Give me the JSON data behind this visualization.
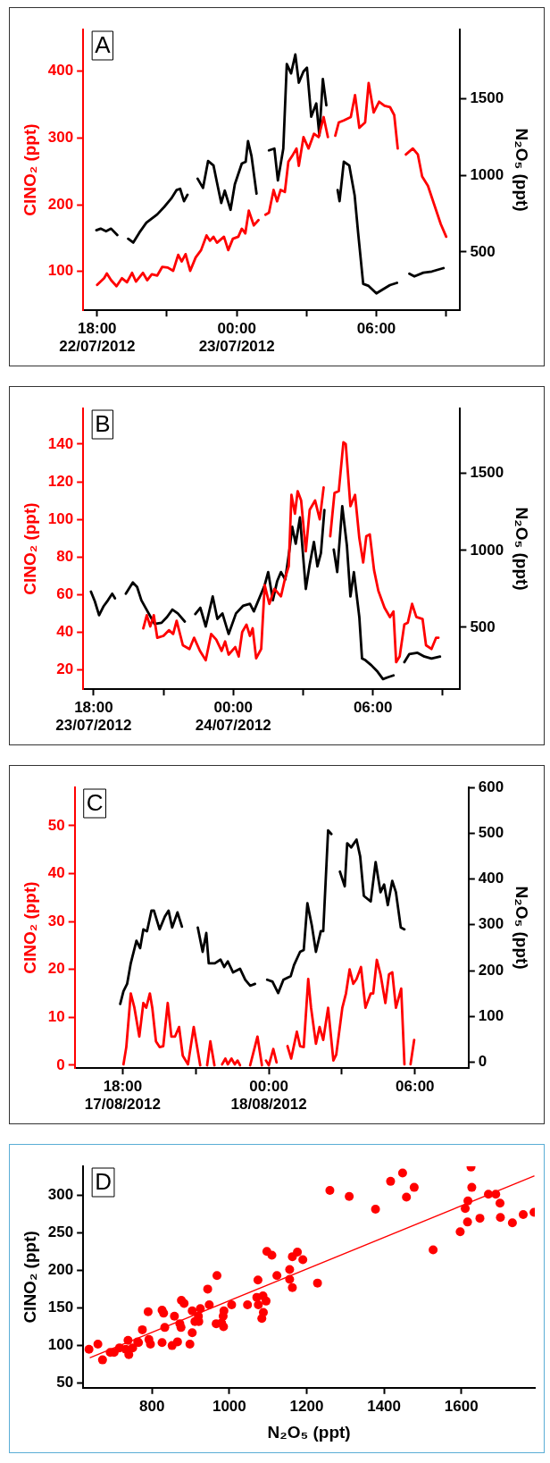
{
  "chart_data": [
    {
      "type": "line",
      "annotations": [
        "A"
      ],
      "ylabel": "ClNO₂ (ppt)",
      "y2label": "N₂O₅ (ppt)",
      "xlim": [
        "2012-07-22T17:24",
        "2012-07-23T09:36"
      ],
      "xticks": [
        {
          "value": "2012-07-22T18:00",
          "label": "18:00\n22/07/2012"
        },
        {
          "value": "2012-07-22T21:00",
          "label": null
        },
        {
          "value": "2012-07-23T00:00",
          "label": "00:00\n23/07/2012"
        },
        {
          "value": "2012-07-23T03:00",
          "label": null
        },
        {
          "value": "2012-07-23T06:00",
          "label": "06:00"
        },
        {
          "value": "2012-07-23T09:00",
          "label": null
        }
      ],
      "ylim": [
        42,
        462
      ],
      "yticks": [
        100,
        200,
        300,
        400
      ],
      "y2lim": [
        120,
        1950
      ],
      "y2ticks": [
        500,
        1000,
        1500
      ],
      "series": [
        {
          "color": "#ff0000",
          "x": [
            "2012-07-22T18:00",
            "2012-07-22T18:18",
            "2012-07-22T18:25",
            "2012-07-22T18:36",
            "2012-07-22T18:50",
            "2012-07-22T19:04",
            "2012-07-22T19:17",
            "2012-07-22T19:30",
            "2012-07-22T19:40",
            "2012-07-22T19:58",
            "2012-07-22T20:09",
            "2012-07-22T20:21",
            "2012-07-22T20:35",
            "2012-07-22T20:48",
            "2012-07-22T21:02",
            "2012-07-22T21:16",
            "2012-07-22T21:29",
            "2012-07-22T21:38",
            "2012-07-22T21:48",
            "2012-07-22T22:00",
            "2012-07-22T22:14",
            "2012-07-22T22:28",
            "2012-07-22T22:42",
            "2012-07-22T22:51",
            "2012-07-22T23:00",
            "2012-07-22T23:09",
            "2012-07-22T23:27",
            "2012-07-22T23:38",
            "2012-07-22T23:50",
            "2012-07-23T00:04",
            "2012-07-23T00:13",
            "2012-07-23T00:22",
            "2012-07-23T00:31",
            "2012-07-23T00:44",
            "2012-07-23T00:56",
            "2012-07-23T01:06",
            "2012-07-23T01:14",
            "2012-07-23T01:23",
            "2012-07-23T01:35",
            "2012-07-23T01:44",
            "2012-07-23T01:53",
            "2012-07-23T02:04",
            "2012-07-23T02:13",
            "2012-07-23T02:25",
            "2012-07-23T02:34",
            "2012-07-23T02:40",
            "2012-07-23T02:52",
            "2012-07-23T03:05",
            "2012-07-23T03:19",
            "2012-07-23T03:31",
            "2012-07-23T03:44",
            "2012-07-23T03:55",
            "2012-07-23T04:06",
            "2012-07-23T04:14",
            "2012-07-23T04:23",
            "2012-07-23T04:36",
            "2012-07-23T04:54",
            "2012-07-23T05:05",
            "2012-07-23T05:16",
            "2012-07-23T05:31",
            "2012-07-23T05:40",
            "2012-07-23T05:53",
            "2012-07-23T06:07",
            "2012-07-23T06:21",
            "2012-07-23T06:35",
            "2012-07-23T06:46",
            "2012-07-23T06:55",
            "2012-07-23T07:06",
            "2012-07-23T07:16",
            "2012-07-23T07:34",
            "2012-07-23T07:47",
            "2012-07-23T07:58",
            "2012-07-23T08:13",
            "2012-07-23T08:28",
            "2012-07-23T08:46",
            "2012-07-23T09:00"
          ],
          "values": [
            80,
            90,
            97,
            87,
            78,
            90,
            84,
            98,
            85,
            98,
            87,
            96,
            94,
            107,
            106,
            101,
            125,
            115,
            126,
            101,
            121,
            132,
            154,
            146,
            152,
            143,
            152,
            132,
            149,
            152,
            164,
            157,
            191,
            169,
            177,
            null,
            185,
            188,
            222,
            205,
            222,
            219,
            264,
            275,
            284,
            258,
            301,
            284,
            306,
            301,
            331,
            301,
            null,
            303,
            323,
            326,
            331,
            364,
            315,
            323,
            382,
            338,
            354,
            348,
            346,
            334,
            284,
            null,
            275,
            284,
            275,
            242,
            228,
            202,
            171,
            152
          ]
        },
        {
          "color": "#000000",
          "axis": "y2",
          "x": [
            "2012-07-22T17:58",
            "2012-07-22T18:09",
            "2012-07-22T18:23",
            "2012-07-22T18:36",
            "2012-07-22T18:52",
            "2012-07-22T19:06",
            "2012-07-22T19:20",
            "2012-07-22T19:33",
            "2012-07-22T19:49",
            "2012-07-22T20:07",
            "2012-07-22T20:35",
            "2012-07-22T20:53",
            "2012-07-22T21:11",
            "2012-07-22T21:25",
            "2012-07-22T21:34",
            "2012-07-22T21:44",
            "2012-07-22T21:53",
            "2012-07-22T22:06",
            "2012-07-22T22:19",
            "2012-07-22T22:33",
            "2012-07-22T22:46",
            "2012-07-22T23:00",
            "2012-07-22T23:09",
            "2012-07-22T23:20",
            "2012-07-22T23:29",
            "2012-07-22T23:44",
            "2012-07-22T23:55",
            "2012-07-23T00:13",
            "2012-07-23T00:23",
            "2012-07-23T00:29",
            "2012-07-23T00:38",
            "2012-07-23T00:51",
            "2012-07-23T01:06",
            "2012-07-23T01:23",
            "2012-07-23T01:37",
            "2012-07-23T01:46",
            "2012-07-23T02:00",
            "2012-07-23T02:09",
            "2012-07-23T02:20",
            "2012-07-23T02:31",
            "2012-07-23T02:40",
            "2012-07-23T02:52",
            "2012-07-23T03:01",
            "2012-07-23T03:12",
            "2012-07-23T03:25",
            "2012-07-23T03:33",
            "2012-07-23T03:42",
            "2012-07-23T03:51",
            "2012-07-23T04:06",
            "2012-07-23T04:20",
            "2012-07-23T04:25",
            "2012-07-23T04:36",
            "2012-07-23T04:50",
            "2012-07-23T05:04",
            "2012-07-23T05:13",
            "2012-07-23T05:26",
            "2012-07-23T05:40",
            "2012-07-23T06:00",
            "2012-07-23T06:16",
            "2012-07-23T06:35",
            "2012-07-23T06:53",
            "2012-07-23T07:09",
            "2012-07-23T07:25",
            "2012-07-23T07:38",
            "2012-07-23T08:01",
            "2012-07-23T08:23",
            "2012-07-23T08:53"
          ],
          "values": [
            642,
            652,
            635,
            652,
            610,
            null,
            586,
            561,
            627,
            691,
            745,
            794,
            848,
            904,
            912,
            831,
            873,
            null,
            978,
            917,
            1093,
            1064,
            953,
            819,
            900,
            775,
            941,
            1076,
            1088,
            1223,
            1125,
            880,
            null,
            1162,
            1174,
            966,
            1174,
            1725,
            1664,
            1787,
            1603,
            1676,
            1701,
            1382,
            1468,
            1260,
            1627,
            1456,
            null,
            904,
            831,
            1088,
            1064,
            868,
            623,
            292,
            279,
            230,
            255,
            284,
            299,
            null,
            358,
            341,
            365,
            373,
            395
          ]
        }
      ]
    },
    {
      "type": "line",
      "annotations": [
        "B"
      ],
      "ylabel": "ClNO₂ (ppt)",
      "y2label": "N₂O₅ (ppt)",
      "xlim": [
        "2012-07-23T17:33",
        "2012-07-24T09:45"
      ],
      "xticks": [
        {
          "value": "2012-07-23T18:00",
          "label": "18:00\n23/07/2012"
        },
        {
          "value": "2012-07-23T21:00",
          "label": null
        },
        {
          "value": "2012-07-24T00:00",
          "label": "00:00\n24/07/2012"
        },
        {
          "value": "2012-07-24T03:00",
          "label": null
        },
        {
          "value": "2012-07-24T06:00",
          "label": "06:00"
        },
        {
          "value": "2012-07-24T09:00",
          "label": null
        }
      ],
      "ylim": [
        9.6,
        159
      ],
      "yticks": [
        20,
        40,
        60,
        80,
        100,
        120,
        140
      ],
      "y2lim": [
        97,
        1923
      ],
      "y2ticks": [
        500,
        1000,
        1500
      ],
      "series": [
        {
          "color": "#ff0000",
          "x": [
            "2012-07-23T20:08",
            "2012-07-23T20:17",
            "2012-07-23T20:26",
            "2012-07-23T20:35",
            "2012-07-23T20:44",
            "2012-07-23T21:00",
            "2012-07-23T21:14",
            "2012-07-23T21:25",
            "2012-07-23T21:34",
            "2012-07-23T21:50",
            "2012-07-23T22:07",
            "2012-07-23T22:19",
            "2012-07-23T22:34",
            "2012-07-23T22:49",
            "2012-07-23T23:03",
            "2012-07-23T23:16",
            "2012-07-23T23:30",
            "2012-07-23T23:39",
            "2012-07-23T23:48",
            "2012-07-24T00:05",
            "2012-07-24T00:14",
            "2012-07-24T00:23",
            "2012-07-24T00:34",
            "2012-07-24T00:43",
            "2012-07-24T00:50",
            "2012-07-24T00:59",
            "2012-07-24T01:12",
            "2012-07-24T01:21",
            "2012-07-24T01:33",
            "2012-07-24T01:46",
            "2012-07-24T02:03",
            "2012-07-24T02:14",
            "2012-07-24T02:23",
            "2012-07-24T02:30",
            "2012-07-24T02:39",
            "2012-07-24T02:46",
            "2012-07-24T02:55",
            "2012-07-24T03:07",
            "2012-07-24T03:17",
            "2012-07-24T03:31",
            "2012-07-24T03:43",
            "2012-07-24T03:53",
            "2012-07-24T04:02",
            "2012-07-24T04:10",
            "2012-07-24T04:21",
            "2012-07-24T04:32",
            "2012-07-24T04:44",
            "2012-07-24T04:50",
            "2012-07-24T05:02",
            "2012-07-24T05:14",
            "2012-07-24T05:25",
            "2012-07-24T05:35",
            "2012-07-24T05:43",
            "2012-07-24T05:52",
            "2012-07-24T06:03",
            "2012-07-24T06:14",
            "2012-07-24T06:30",
            "2012-07-24T06:44",
            "2012-07-24T06:53",
            "2012-07-24T07:00",
            "2012-07-24T07:09",
            "2012-07-24T07:21",
            "2012-07-24T07:30",
            "2012-07-24T07:41",
            "2012-07-24T07:52",
            "2012-07-24T08:08",
            "2012-07-24T08:17",
            "2012-07-24T08:31",
            "2012-07-24T08:43",
            "2012-07-24T08:49"
          ],
          "values": [
            42,
            49,
            43,
            49,
            37,
            38,
            41,
            39,
            46,
            33,
            31,
            37,
            30,
            25,
            39,
            36,
            30,
            35,
            28,
            32,
            27,
            40,
            44,
            38,
            42,
            26,
            31,
            65,
            55,
            63,
            59,
            69,
            75,
            113,
            103,
            115,
            110,
            83,
            105,
            110,
            100,
            117,
            null,
            91,
            114,
            115,
            141,
            140,
            107,
            113,
            90,
            77,
            91,
            92,
            73,
            62,
            53,
            48,
            51,
            24,
            27,
            44,
            45,
            55,
            48,
            47,
            33,
            31,
            37,
            37
          ]
        },
        {
          "color": "#000000",
          "axis": "y2",
          "x": [
            "2012-07-23T17:53",
            "2012-07-23T18:03",
            "2012-07-23T18:14",
            "2012-07-23T18:25",
            "2012-07-23T18:37",
            "2012-07-23T18:48",
            "2012-07-23T18:55",
            "2012-07-23T19:09",
            "2012-07-23T19:23",
            "2012-07-23T19:41",
            "2012-07-23T19:52",
            "2012-07-23T20:03",
            "2012-07-23T20:19",
            "2012-07-23T20:37",
            "2012-07-23T20:55",
            "2012-07-23T21:09",
            "2012-07-23T21:23",
            "2012-07-23T21:37",
            "2012-07-23T21:55",
            "2012-07-23T22:09",
            "2012-07-23T22:22",
            "2012-07-23T22:35",
            "2012-07-23T22:49",
            "2012-07-23T23:07",
            "2012-07-23T23:19",
            "2012-07-23T23:32",
            "2012-07-23T23:48",
            "2012-07-24T00:07",
            "2012-07-24T00:25",
            "2012-07-24T00:43",
            "2012-07-24T00:53",
            "2012-07-24T01:21",
            "2012-07-24T01:30",
            "2012-07-24T01:42",
            "2012-07-24T01:53",
            "2012-07-24T02:03",
            "2012-07-24T02:14",
            "2012-07-24T02:25",
            "2012-07-24T02:32",
            "2012-07-24T02:41",
            "2012-07-24T02:52",
            "2012-07-24T03:07",
            "2012-07-24T03:17",
            "2012-07-24T03:28",
            "2012-07-24T03:37",
            "2012-07-24T03:46",
            "2012-07-24T03:55",
            "2012-07-24T04:06",
            "2012-07-24T04:19",
            "2012-07-24T04:28",
            "2012-07-24T04:41",
            "2012-07-24T04:53",
            "2012-07-24T05:02",
            "2012-07-24T05:11",
            "2012-07-24T05:25",
            "2012-07-24T05:32",
            "2012-07-24T05:41",
            "2012-07-24T05:56",
            "2012-07-24T06:12",
            "2012-07-24T06:26",
            "2012-07-24T06:39",
            "2012-07-24T06:53",
            "2012-07-24T07:06",
            "2012-07-24T07:21",
            "2012-07-24T07:34",
            "2012-07-24T07:55",
            "2012-07-24T08:13",
            "2012-07-24T08:31",
            "2012-07-24T08:53"
          ],
          "values": [
            732,
            669,
            578,
            634,
            676,
            718,
            688,
            null,
            718,
            791,
            762,
            676,
            603,
            522,
            529,
            566,
            615,
            590,
            537,
            null,
            586,
            627,
            505,
            700,
            554,
            590,
            456,
            590,
            639,
            652,
            603,
            774,
            859,
            676,
            798,
            859,
            810,
            1006,
            1153,
            1043,
            1214,
            749,
            908,
            1055,
            896,
            982,
            1263,
            null,
            1006,
            859,
            1287,
            1031,
            700,
            859,
            566,
            297,
            285,
            253,
            211,
            163,
            175,
            187,
            null,
            273,
            326,
            334,
            309,
            297,
            309
          ]
        }
      ]
    },
    {
      "type": "line",
      "annotations": [
        "C"
      ],
      "ylabel": "ClNO₂ (ppt)",
      "y2label": "N₂O₅ (ppt)",
      "xlim": [
        "2012-08-17T16:02",
        "2012-08-18T08:12"
      ],
      "xticks": [
        {
          "value": "2012-08-17T18:00",
          "label": "18:00\n17/08/2012"
        },
        {
          "value": "2012-08-17T21:00",
          "label": null
        },
        {
          "value": "2012-08-18T00:00",
          "label": "00:00\n18/08/2012"
        },
        {
          "value": "2012-08-18T03:00",
          "label": null
        },
        {
          "value": "2012-08-18T06:00",
          "label": "06:00"
        }
      ],
      "ylim": [
        -0.6,
        58
      ],
      "yticks": [
        0,
        10,
        20,
        30,
        40,
        50
      ],
      "y2lim": [
        -13,
        600
      ],
      "y2ticks": [
        0,
        100,
        200,
        300,
        400,
        500,
        600
      ],
      "series": [
        {
          "color": "#ff0000",
          "x": [
            "2012-08-17T18:02",
            "2012-08-17T18:09",
            "2012-08-17T18:20",
            "2012-08-17T18:29",
            "2012-08-17T18:41",
            "2012-08-17T18:51",
            "2012-08-17T18:58",
            "2012-08-17T19:07",
            "2012-08-17T19:13",
            "2012-08-17T19:22",
            "2012-08-17T19:31",
            "2012-08-17T19:40",
            "2012-08-17T19:51",
            "2012-08-17T20:00",
            "2012-08-17T20:09",
            "2012-08-17T20:19",
            "2012-08-17T20:28",
            "2012-08-17T20:41",
            "2012-08-17T20:55",
            "2012-08-17T21:11",
            "2012-08-17T21:18",
            "2012-08-17T21:28",
            "2012-08-17T21:36",
            "2012-08-17T21:46",
            "2012-08-17T21:54",
            "2012-08-17T22:05",
            "2012-08-17T22:13",
            "2012-08-17T22:19",
            "2012-08-17T22:28",
            "2012-08-17T22:36",
            "2012-08-17T22:43",
            "2012-08-17T22:49",
            "2012-08-17T23:00",
            "2012-08-17T23:14",
            "2012-08-17T23:32",
            "2012-08-17T23:43",
            "2012-08-17T23:48",
            "2012-08-17T23:53",
            "2012-08-18T00:00",
            "2012-08-18T00:11",
            "2012-08-18T00:19",
            "2012-08-18T00:30",
            "2012-08-18T00:46",
            "2012-08-18T00:55",
            "2012-08-18T01:09",
            "2012-08-18T01:17",
            "2012-08-18T01:26",
            "2012-08-18T01:37",
            "2012-08-18T01:44",
            "2012-08-18T01:56",
            "2012-08-18T02:05",
            "2012-08-18T02:14",
            "2012-08-18T02:26",
            "2012-08-18T02:39",
            "2012-08-18T02:46",
            "2012-08-18T03:01",
            "2012-08-18T03:10",
            "2012-08-18T03:19",
            "2012-08-18T03:28",
            "2012-08-18T03:36",
            "2012-08-18T03:47",
            "2012-08-18T03:58",
            "2012-08-18T04:11",
            "2012-08-18T04:17",
            "2012-08-18T04:26",
            "2012-08-18T04:35",
            "2012-08-18T04:47",
            "2012-08-18T04:56",
            "2012-08-18T05:04",
            "2012-08-18T05:13",
            "2012-08-18T05:26",
            "2012-08-18T05:34",
            "2012-08-18T05:42",
            "2012-08-18T05:49",
            "2012-08-18T05:58"
          ],
          "values": [
            0.2,
            3.8,
            15,
            12,
            6,
            13,
            12,
            15,
            12,
            5,
            3.8,
            4,
            13,
            6,
            6,
            8,
            2,
            0.2,
            8,
            0,
            null,
            0,
            5,
            0,
            null,
            0.2,
            1.4,
            0.2,
            1.4,
            0.2,
            1,
            0,
            null,
            0,
            6,
            0,
            null,
            1,
            0,
            3.4,
            0.6,
            null,
            4,
            1.4,
            7,
            4,
            3.8,
            18,
            12,
            4.5,
            8,
            5.3,
            12,
            1,
            2.2,
            12,
            15,
            20,
            17,
            18,
            20.5,
            12,
            15,
            15,
            22,
            19,
            13,
            19,
            19.4,
            12,
            16,
            0.2,
            null,
            0.2,
            5.3
          ]
        },
        {
          "color": "#000000",
          "axis": "y2",
          "x": [
            "2012-08-17T17:54",
            "2012-08-17T18:02",
            "2012-08-17T18:11",
            "2012-08-17T18:20",
            "2012-08-17T18:34",
            "2012-08-17T18:43",
            "2012-08-17T18:51",
            "2012-08-17T19:00",
            "2012-08-17T19:11",
            "2012-08-17T19:17",
            "2012-08-17T19:31",
            "2012-08-17T19:44",
            "2012-08-17T19:53",
            "2012-08-17T20:02",
            "2012-08-17T20:15",
            "2012-08-17T20:26",
            "2012-08-17T20:48",
            "2012-08-17T21:05",
            "2012-08-17T21:17",
            "2012-08-17T21:26",
            "2012-08-17T21:32",
            "2012-08-17T21:47",
            "2012-08-17T22:01",
            "2012-08-17T22:10",
            "2012-08-17T22:19",
            "2012-08-17T22:32",
            "2012-08-17T22:49",
            "2012-08-17T23:02",
            "2012-08-17T23:14",
            "2012-08-17T23:26",
            "2012-08-17T23:42",
            "2012-08-17T23:56",
            "2012-08-18T00:09",
            "2012-08-18T00:23",
            "2012-08-18T00:36",
            "2012-08-18T00:54",
            "2012-08-18T01:02",
            "2012-08-18T01:17",
            "2012-08-18T01:26",
            "2012-08-18T01:35",
            "2012-08-18T01:46",
            "2012-08-18T01:56",
            "2012-08-18T02:08",
            "2012-08-18T02:14",
            "2012-08-18T02:26",
            "2012-08-18T02:34",
            "2012-08-18T02:45",
            "2012-08-18T02:55",
            "2012-08-18T03:07",
            "2012-08-18T03:13",
            "2012-08-18T03:23",
            "2012-08-18T03:36",
            "2012-08-18T03:45",
            "2012-08-18T03:54",
            "2012-08-18T04:11",
            "2012-08-18T04:23",
            "2012-08-18T04:35",
            "2012-08-18T04:44",
            "2012-08-18T04:53",
            "2012-08-18T05:04",
            "2012-08-18T05:13",
            "2012-08-18T05:25",
            "2012-08-18T05:34"
          ],
          "values": [
            127,
            155,
            171,
            216,
            265,
            249,
            290,
            286,
            331,
            331,
            290,
            318,
            331,
            294,
            327,
            296,
            null,
            294,
            241,
            282,
            216,
            216,
            224,
            208,
            220,
            196,
            204,
            180,
            167,
            171,
            null,
            180,
            176,
            151,
            180,
            188,
            212,
            241,
            245,
            347,
            298,
            241,
            286,
            286,
            506,
            498,
            null,
            416,
            384,
            478,
            469,
            486,
            449,
            363,
            351,
            437,
            371,
            388,
            343,
            396,
            371,
            294,
            290
          ]
        }
      ]
    },
    {
      "type": "scatter",
      "annotations": [
        "D"
      ],
      "xlabel": "N₂O₅ (ppt)",
      "ylabel": "ClNO₂ (ppt)",
      "xlim": [
        622,
        1790
      ],
      "xticks": [
        800,
        1000,
        1200,
        1400,
        1600
      ],
      "ylim": [
        44,
        338
      ],
      "yticks": [
        50,
        100,
        150,
        200,
        250,
        300
      ],
      "series": [
        {
          "color": "#ff0000",
          "marker": "circle",
          "x": [
            637,
            660,
            672,
            692,
            702,
            716,
            732,
            738,
            740,
            750,
            763,
            765,
            775,
            790,
            792,
            796,
            826,
            826,
            830,
            833,
            852,
            858,
            866,
            872,
            875,
            876,
            883,
            898,
            904,
            904,
            911,
            920,
            921,
            925,
            944,
            948,
            966,
            968,
            980,
            984,
            985,
            986,
            1006,
            1047,
            1071,
            1074,
            1075,
            1087,
            1088,
            1084,
            1095,
            1097,
            1110,
            1123,
            1156,
            1156,
            1163,
            1163,
            1176,
            1190,
            1228,
            1260,
            1310,
            1378,
            1417,
            1448,
            1458,
            1478,
            1527,
            1597,
            1610,
            1616,
            1617,
            1625,
            1627,
            1648,
            1670,
            1689,
            1700,
            1701,
            1732,
            1760,
            1788
          ],
          "values": [
            95,
            102,
            81,
            91,
            91,
            97,
            95,
            107,
            88,
            97,
            105,
            104,
            121,
            145,
            108,
            102,
            104,
            147,
            143,
            124,
            100,
            139,
            105,
            129,
            124,
            160,
            156,
            102,
            146,
            117,
            132,
            139,
            132,
            149,
            175,
            154,
            129,
            193,
            130,
            139,
            125,
            146,
            154,
            154,
            164,
            187,
            154,
            166,
            144,
            136,
            159,
            225,
            220,
            193,
            201,
            188,
            218,
            177,
            224,
            214,
            183,
            306,
            298,
            281,
            318,
            329,
            297,
            310,
            227,
            251,
            282,
            264,
            292,
            337,
            310,
            269,
            301,
            301,
            289,
            270,
            263,
            274,
            277
          ]
        },
        {
          "type": "line",
          "color": "#ff0000",
          "marker": "none",
          "x": [
            640,
            1788
          ],
          "values": [
            84,
            325
          ]
        }
      ]
    }
  ]
}
